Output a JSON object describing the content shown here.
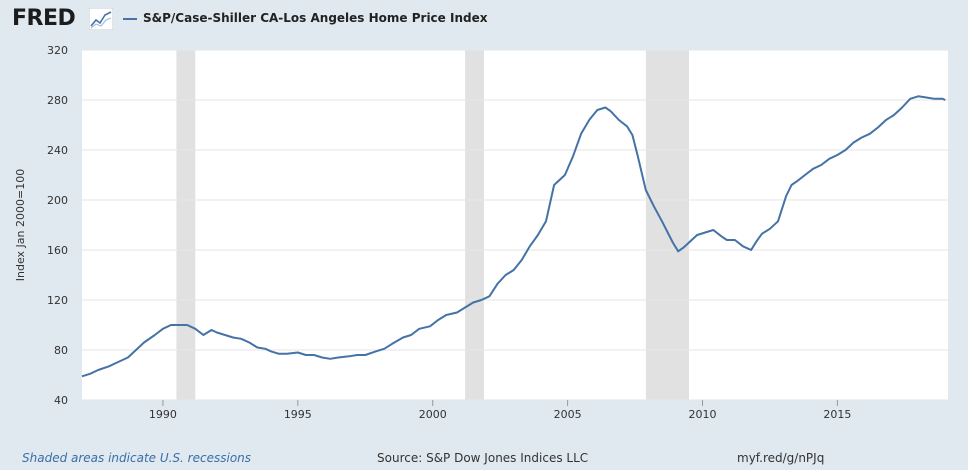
{
  "header": {
    "logo_text": "FRED",
    "series_name": "S&P/Case-Shiller CA-Los Angeles Home Price Index"
  },
  "footer": {
    "recession_note": "Shaded areas indicate U.S. recessions",
    "source": "Source: S&P Dow Jones Indices LLC",
    "short_url": "myf.red/g/nPJq"
  },
  "colors": {
    "line": "#4572a7",
    "recession": "#e1e1e1",
    "grid": "#e6e6e6",
    "page_background": "#e1e9f0",
    "plot_background": "#ffffff"
  },
  "chart_data": {
    "type": "line",
    "title": "",
    "xlabel": "",
    "ylabel": "Index Jan 2000=100",
    "xlim": [
      1987.0,
      2019.1
    ],
    "ylim": [
      40,
      320
    ],
    "x_ticks": [
      1990,
      1995,
      2000,
      2005,
      2010,
      2015
    ],
    "y_ticks": [
      40,
      80,
      120,
      160,
      200,
      240,
      280,
      320
    ],
    "grid": "horizontal",
    "legend": "top-left",
    "recessions": [
      [
        1990.5,
        1991.2
      ],
      [
        2001.2,
        2001.9
      ],
      [
        2007.9,
        2009.5
      ]
    ],
    "series": [
      {
        "name": "S&P/Case-Shiller CA-Los Angeles Home Price Index",
        "x": [
          1987.0,
          1987.3,
          1987.6,
          1988.0,
          1988.3,
          1988.7,
          1989.0,
          1989.3,
          1989.7,
          1990.0,
          1990.3,
          1990.6,
          1990.9,
          1991.2,
          1991.5,
          1991.8,
          1992.0,
          1992.3,
          1992.6,
          1992.9,
          1993.2,
          1993.5,
          1993.8,
          1994.0,
          1994.3,
          1994.6,
          1995.0,
          1995.3,
          1995.6,
          1995.9,
          1996.2,
          1996.5,
          1996.9,
          1997.2,
          1997.5,
          1997.9,
          1998.2,
          1998.5,
          1998.9,
          1999.2,
          1999.5,
          1999.9,
          2000.2,
          2000.5,
          2000.9,
          2001.2,
          2001.5,
          2001.8,
          2002.1,
          2002.4,
          2002.7,
          2003.0,
          2003.3,
          2003.6,
          2003.9,
          2004.2,
          2004.5,
          2004.9,
          2005.2,
          2005.5,
          2005.8,
          2006.1,
          2006.4,
          2006.6,
          2006.9,
          2007.2,
          2007.4,
          2007.6,
          2007.9,
          2008.2,
          2008.5,
          2008.9,
          2009.1,
          2009.3,
          2009.5,
          2009.8,
          2010.1,
          2010.4,
          2010.7,
          2010.9,
          2011.2,
          2011.5,
          2011.8,
          2012.0,
          2012.2,
          2012.5,
          2012.8,
          2013.1,
          2013.3,
          2013.5,
          2013.8,
          2014.1,
          2014.4,
          2014.7,
          2015.0,
          2015.3,
          2015.6,
          2015.9,
          2016.2,
          2016.5,
          2016.8,
          2017.1,
          2017.4,
          2017.7,
          2018.0,
          2018.3,
          2018.6,
          2018.9,
          2019.0
        ],
        "values": [
          59,
          61,
          64,
          67,
          70,
          74,
          80,
          86,
          92,
          97,
          100,
          100,
          100,
          97,
          92,
          96,
          94,
          92,
          90,
          89,
          86,
          82,
          81,
          79,
          77,
          77,
          78,
          76,
          76,
          74,
          73,
          74,
          75,
          76,
          76,
          79,
          81,
          85,
          90,
          92,
          97,
          99,
          104,
          108,
          110,
          114,
          118,
          120,
          123,
          133,
          140,
          144,
          152,
          163,
          172,
          183,
          212,
          220,
          235,
          253,
          264,
          272,
          274,
          271,
          264,
          259,
          252,
          235,
          208,
          195,
          183,
          166,
          159,
          162,
          166,
          172,
          174,
          176,
          171,
          168,
          168,
          163,
          160,
          167,
          173,
          177,
          183,
          203,
          212,
          215,
          220,
          225,
          228,
          233,
          236,
          240,
          246,
          250,
          253,
          258,
          264,
          268,
          274,
          281,
          283,
          282,
          281,
          281,
          280
        ]
      }
    ]
  }
}
